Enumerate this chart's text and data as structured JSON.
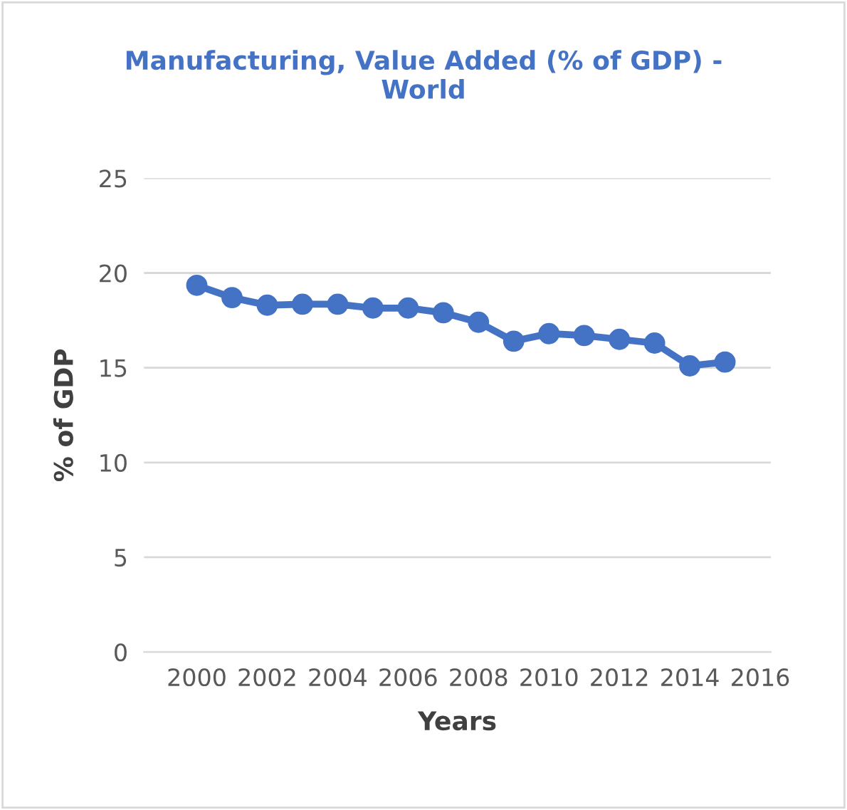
{
  "chart_data": {
    "type": "line",
    "title": "Manufacturing, Value Added (% of GDP) -\nWorld",
    "xlabel": "Years",
    "ylabel": "% of GDP",
    "x": [
      2000,
      2001,
      2002,
      2003,
      2004,
      2005,
      2006,
      2007,
      2008,
      2009,
      2010,
      2011,
      2012,
      2013,
      2014,
      2015
    ],
    "series": [
      {
        "color": "#4472c4",
        "values": [
          19.35,
          18.7,
          18.3,
          18.35,
          18.35,
          18.15,
          18.15,
          17.9,
          17.4,
          16.4,
          16.8,
          16.7,
          16.5,
          16.3,
          15.1,
          15.3
        ]
      }
    ],
    "xlim": [
      1998.5,
      2016.3
    ],
    "xticks": [
      2000,
      2002,
      2004,
      2006,
      2008,
      2010,
      2012,
      2014,
      2016
    ],
    "ylim": [
      0,
      25
    ],
    "yticks": [
      0,
      5,
      10,
      15,
      20,
      25
    ],
    "grid": "y",
    "marker": "circle",
    "line_style": "solid",
    "legend": false
  }
}
